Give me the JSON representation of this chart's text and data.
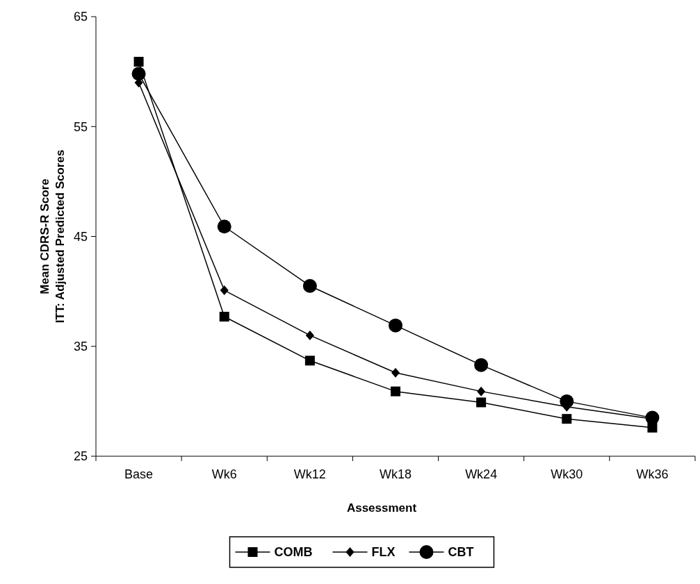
{
  "chart_data": {
    "type": "line",
    "xlabel": "Assessment",
    "ylabel": "Mean CDRS-R Score\nITT: Adjusted Predicted Scores",
    "categories": [
      "Base",
      "Wk6",
      "Wk12",
      "Wk18",
      "Wk24",
      "Wk30",
      "Wk36"
    ],
    "series": [
      {
        "name": "COMB",
        "color": "#000000",
        "marker": "square",
        "values": [
          60.9,
          37.7,
          33.7,
          30.9,
          29.9,
          28.4,
          27.6
        ]
      },
      {
        "name": "FLX",
        "color": "#000000",
        "marker": "diamond",
        "values": [
          59.0,
          40.1,
          36.0,
          32.6,
          30.9,
          29.5,
          28.4
        ]
      },
      {
        "name": "CBT",
        "color": "#000000",
        "marker": "circle",
        "values": [
          59.8,
          45.9,
          40.5,
          36.9,
          33.3,
          30.0,
          28.5
        ]
      }
    ],
    "ylim": [
      25,
      65
    ],
    "yticks": [
      25,
      35,
      45,
      55,
      65
    ],
    "grid": false,
    "legend": "bottom",
    "line_style": "solid"
  }
}
